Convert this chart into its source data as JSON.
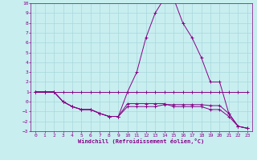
{
  "xlabel": "Windchill (Refroidissement éolien,°C)",
  "background_color": "#c8eef0",
  "grid_color": "#a8d8dc",
  "line_color": "#880088",
  "xlim": [
    -0.5,
    23.5
  ],
  "ylim": [
    -3,
    10
  ],
  "xticks": [
    0,
    1,
    2,
    3,
    4,
    5,
    6,
    7,
    8,
    9,
    10,
    11,
    12,
    13,
    14,
    15,
    16,
    17,
    18,
    19,
    20,
    21,
    22,
    23
  ],
  "yticks": [
    -3,
    -2,
    -1,
    0,
    1,
    2,
    3,
    4,
    5,
    6,
    7,
    8,
    9,
    10
  ],
  "series": [
    [
      1,
      1,
      1,
      1,
      1,
      1,
      1,
      1,
      1,
      1,
      1,
      1,
      1,
      1,
      1,
      1,
      1,
      1,
      1,
      1,
      1,
      1,
      1,
      1
    ],
    [
      1,
      1,
      1,
      0,
      -0.5,
      -0.8,
      -0.8,
      -1.2,
      -1.5,
      -1.5,
      1.0,
      3.0,
      6.5,
      9.0,
      10.5,
      10.5,
      8.0,
      6.5,
      4.5,
      2.0,
      2.0,
      -1.2,
      -2.5,
      -2.7
    ],
    [
      1,
      1,
      1,
      0,
      -0.5,
      -0.8,
      -0.8,
      -1.2,
      -1.5,
      -1.5,
      -0.5,
      -0.5,
      -0.5,
      -0.5,
      -0.3,
      -0.3,
      -0.3,
      -0.3,
      -0.3,
      -0.4,
      -0.4,
      -1.2,
      -2.5,
      -2.7
    ],
    [
      1,
      1,
      1,
      0,
      -0.5,
      -0.8,
      -0.8,
      -1.2,
      -1.5,
      -1.5,
      -0.2,
      -0.2,
      -0.2,
      -0.2,
      -0.2,
      -0.5,
      -0.5,
      -0.5,
      -0.5,
      -0.8,
      -0.8,
      -1.5,
      -2.5,
      -2.7
    ]
  ]
}
